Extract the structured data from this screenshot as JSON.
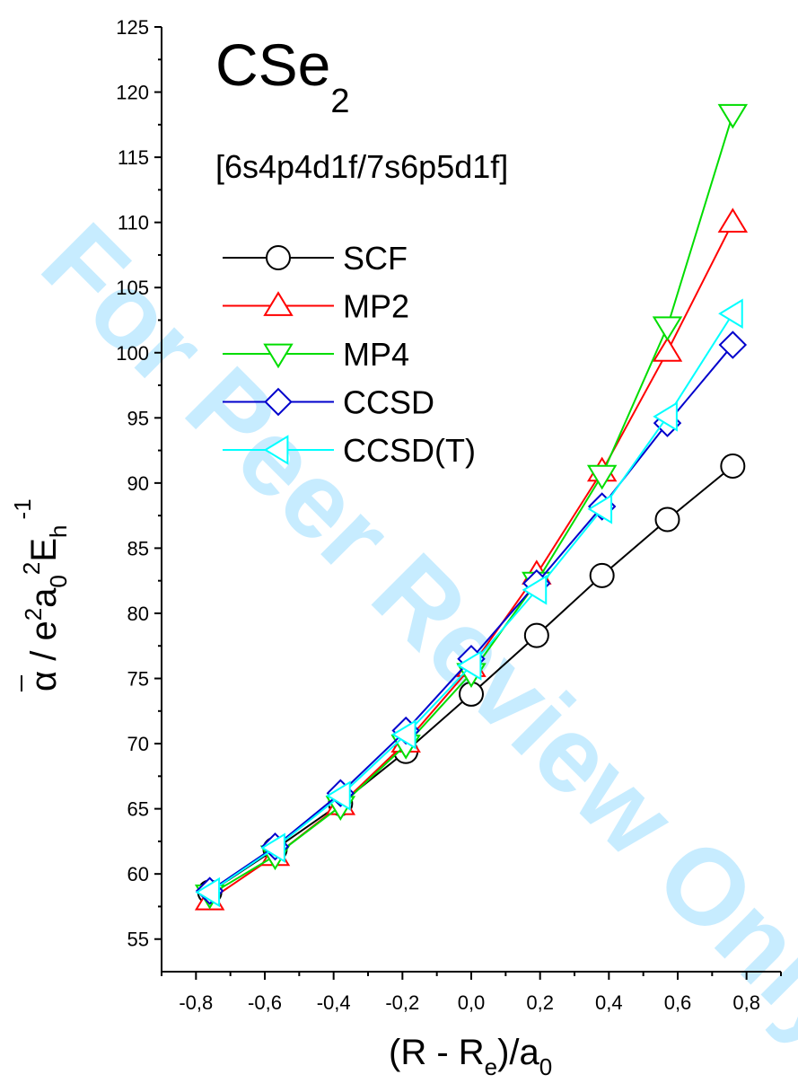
{
  "watermark": "For Peer Review Only",
  "chart_data": {
    "type": "line",
    "title": "CSe",
    "title_subscript": "2",
    "annotation": "[6s4p4d1f/7s6p5d1f]",
    "x": [
      -0.76,
      -0.57,
      -0.38,
      -0.19,
      0.0,
      0.19,
      0.38,
      0.57,
      0.76
    ],
    "xlim": [
      -0.9,
      0.9
    ],
    "ylim": [
      52.5,
      125
    ],
    "xticks": [
      "-0,8",
      "-0,6",
      "-0,4",
      "-0,2",
      "0,0",
      "0,2",
      "0,4",
      "0,6",
      "0,8"
    ],
    "yticks": [
      "55",
      "60",
      "65",
      "70",
      "75",
      "80",
      "85",
      "90",
      "95",
      "100",
      "105",
      "110",
      "115",
      "120",
      "125"
    ],
    "xlabel": {
      "main": "(R - R",
      "sub1": "e",
      "mid": ")/a",
      "sub2": "0"
    },
    "ylabel": {
      "alpha": "α",
      "sep": " / e",
      "sup1": "2",
      "a": "a",
      "sub1": "0",
      "sup2": "2",
      "e": "E",
      "sub2": "h",
      "sup3": "-1"
    },
    "legend_position": "upper-left",
    "series": [
      {
        "name": "SCF",
        "color": "#000000",
        "marker": "circle",
        "values": [
          58.6,
          61.9,
          65.4,
          69.4,
          73.8,
          78.3,
          82.9,
          87.2,
          91.3
        ]
      },
      {
        "name": "MP2",
        "color": "#ff0000",
        "marker": "triangle-up",
        "values": [
          58.0,
          61.4,
          65.3,
          70.1,
          75.9,
          83.0,
          90.9,
          100.1,
          110.0
        ]
      },
      {
        "name": "MP4",
        "color": "#00dd00",
        "marker": "triangle-down",
        "values": [
          58.4,
          61.4,
          65.2,
          69.9,
          75.4,
          82.4,
          90.6,
          102.0,
          118.3
        ]
      },
      {
        "name": "CCSD",
        "color": "#0000cc",
        "marker": "diamond",
        "values": [
          58.7,
          62.1,
          66.2,
          71.0,
          76.5,
          82.3,
          88.2,
          94.6,
          100.6
        ]
      },
      {
        "name": "CCSD(T)",
        "color": "#00ffff",
        "marker": "triangle-left",
        "values": [
          58.6,
          62.0,
          66.0,
          70.7,
          76.0,
          81.8,
          88.0,
          95.1,
          103.0
        ]
      }
    ]
  }
}
